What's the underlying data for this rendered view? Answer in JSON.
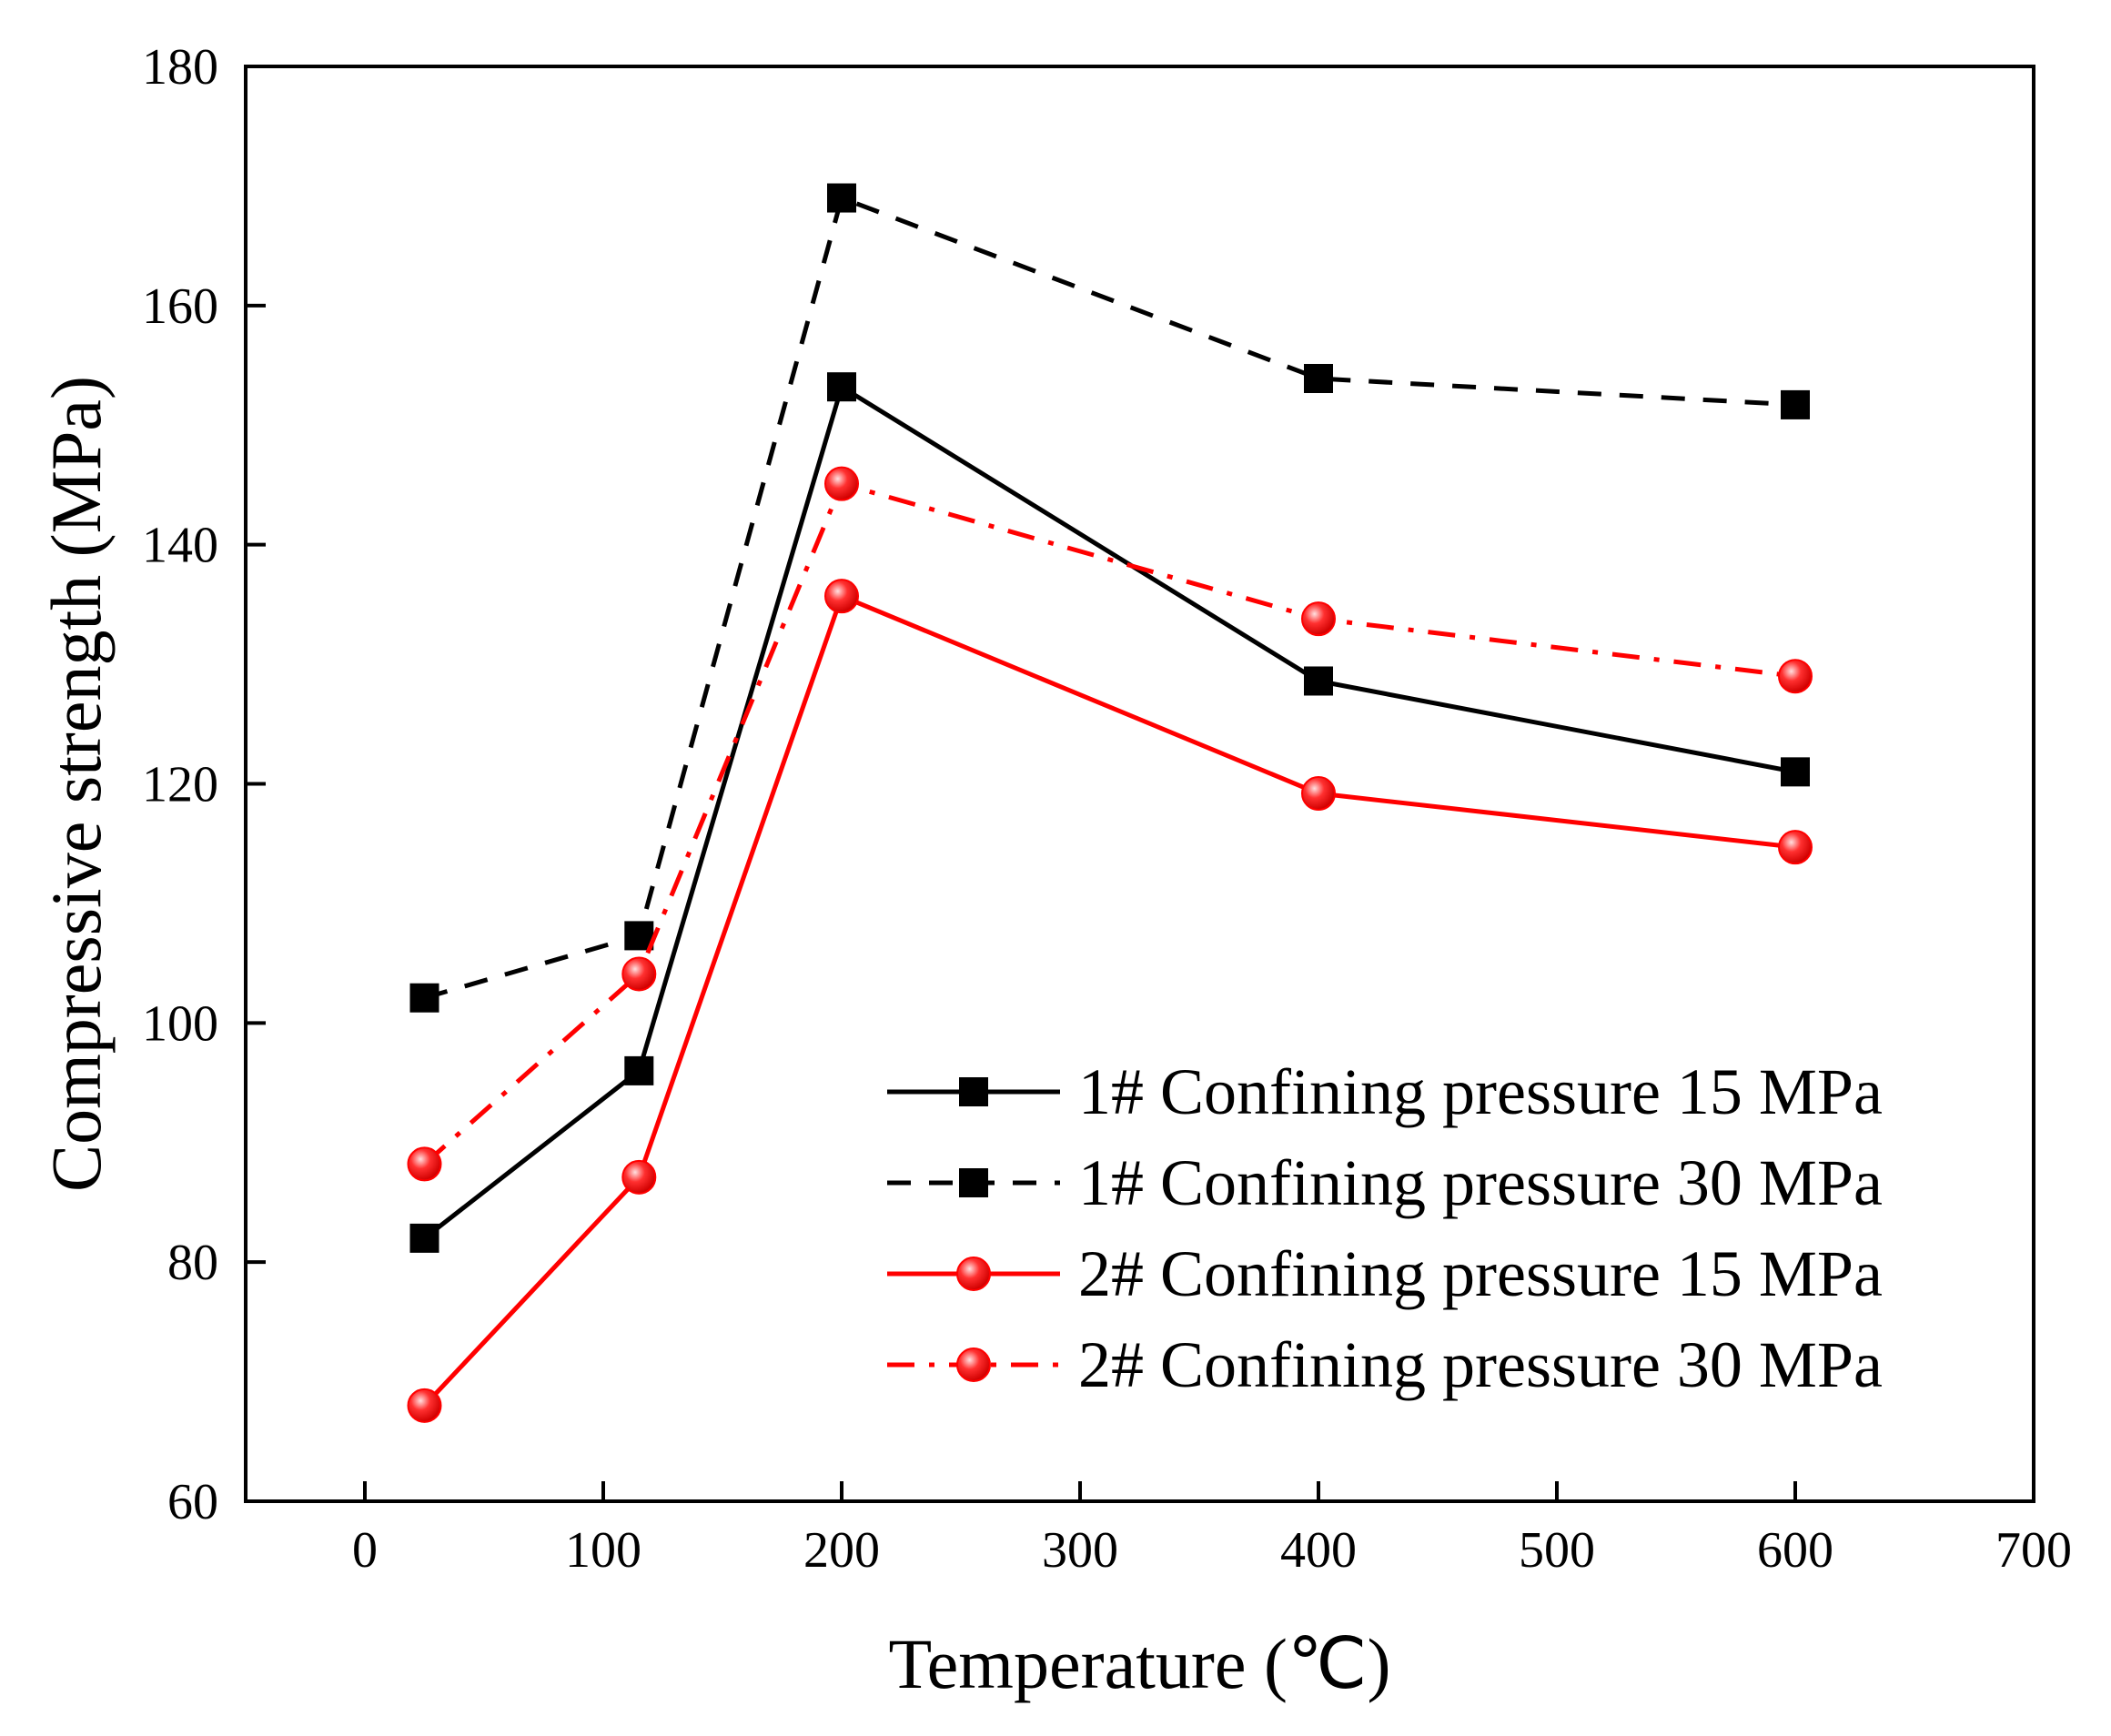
{
  "chart_data": {
    "type": "line",
    "title": "",
    "xlabel": "Temperature (℃)",
    "ylabel": "Compressive strength (MPa)",
    "xlim": [
      -50,
      700
    ],
    "ylim": [
      60,
      180
    ],
    "xticks": [
      0,
      100,
      200,
      300,
      400,
      500,
      600,
      700
    ],
    "yticks": [
      60,
      80,
      100,
      120,
      140,
      160,
      180
    ],
    "grid": false,
    "legend_position": "bottom-right",
    "series": [
      {
        "name": "1# Confining pressure 15 MPa",
        "x": [
          25,
          115,
          200,
          400,
          600
        ],
        "y": [
          82,
          96,
          153.2,
          128.6,
          121
        ],
        "color": "#000000",
        "dash": "solid",
        "marker": "square"
      },
      {
        "name": "1# Confining pressure 30 MPa",
        "x": [
          25,
          115,
          200,
          400,
          600
        ],
        "y": [
          102.1,
          107.3,
          169,
          153.9,
          151.7
        ],
        "color": "#000000",
        "dash": "dashed",
        "marker": "square"
      },
      {
        "name": "2# Confining pressure 15 MPa",
        "x": [
          25,
          115,
          200,
          400,
          600
        ],
        "y": [
          68,
          87.1,
          135.7,
          119.2,
          114.7
        ],
        "color": "#ff0000",
        "dash": "solid",
        "marker": "circle"
      },
      {
        "name": "2# Confining pressure 30 MPa",
        "x": [
          25,
          115,
          200,
          400,
          600
        ],
        "y": [
          88.2,
          104.1,
          145.1,
          133.8,
          129
        ],
        "color": "#ff0000",
        "dash": "dashdot",
        "marker": "circle"
      }
    ]
  }
}
